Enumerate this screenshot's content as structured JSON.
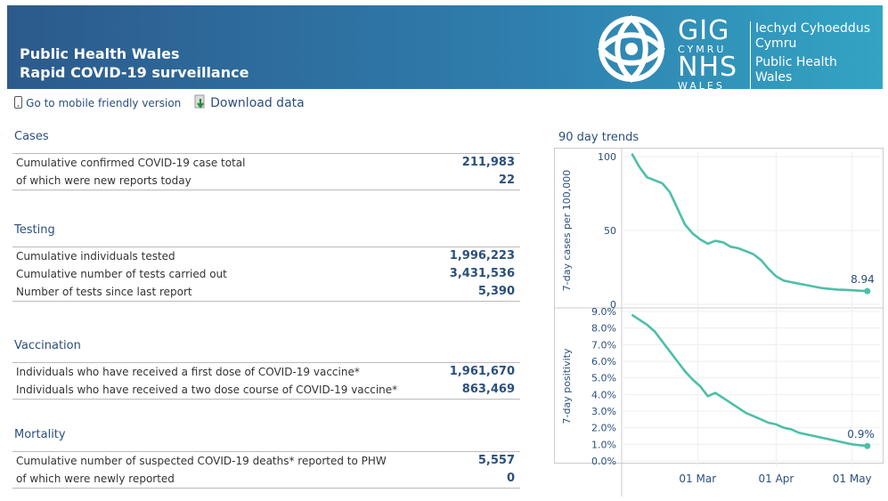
{
  "header": {
    "title_line1": "Public Health Wales",
    "title_line2": "Rapid COVID-19 surveillance",
    "logo_gig": "GIG",
    "logo_cymru": "CYMRU",
    "logo_nhs": "NHS",
    "logo_wales": "WALES",
    "org_welsh_line1": "Iechyd Cyhoeddus",
    "org_welsh_line2": "Cymru",
    "org_english_line1": "Public Health",
    "org_english_line2": "Wales"
  },
  "toolbar": {
    "mobile_label": "Go to mobile friendly version",
    "download_label": "Download data"
  },
  "sections": {
    "cases": {
      "title": "Cases",
      "rows": [
        {
          "label": "Cumulative confirmed COVID-19 case total",
          "value": "211,983"
        },
        {
          "label": "of which were new reports today",
          "value": "22"
        }
      ]
    },
    "testing": {
      "title": "Testing",
      "rows": [
        {
          "label": "Cumulative individuals tested",
          "value": "1,996,223"
        },
        {
          "label": "Cumulative number of tests carried out",
          "value": "3,431,536"
        },
        {
          "label": "Number of tests since last report",
          "value": "5,390"
        }
      ]
    },
    "vaccination": {
      "title": "Vaccination",
      "rows": [
        {
          "label": "Individuals who have received a first dose of COVID-19 vaccine*",
          "value": "1,961,670"
        },
        {
          "label": "Individuals who have received a two dose course of COVID-19 vaccine*",
          "value": "863,469"
        }
      ]
    },
    "mortality": {
      "title": "Mortality",
      "rows": [
        {
          "label": "Cumulative number of suspected COVID-19 deaths* reported to PHW",
          "value": "5,557"
        },
        {
          "label": "of which were newly reported",
          "value": "0"
        }
      ]
    }
  },
  "trends": {
    "title": "90 day trends",
    "line_color": "#4dbfa8"
  },
  "chart_data": [
    {
      "type": "line",
      "title": "",
      "ylabel": "7-day cases per 100,000",
      "ylim": [
        0,
        100
      ],
      "yticks": [
        "0",
        "50",
        "100"
      ],
      "xticks": [
        "01 Mar",
        "01 Apr",
        "01 May"
      ],
      "end_label": "8.94",
      "series": [
        {
          "x": [
            "2021-02-03",
            "2021-02-06",
            "2021-02-09",
            "2021-02-12",
            "2021-02-15",
            "2021-02-18",
            "2021-02-21",
            "2021-02-24",
            "2021-02-27",
            "2021-03-02",
            "2021-03-05",
            "2021-03-08",
            "2021-03-11",
            "2021-03-14",
            "2021-03-17",
            "2021-03-20",
            "2021-03-23",
            "2021-03-26",
            "2021-03-29",
            "2021-04-01",
            "2021-04-04",
            "2021-04-07",
            "2021-04-10",
            "2021-04-13",
            "2021-04-16",
            "2021-04-19",
            "2021-04-22",
            "2021-04-25",
            "2021-04-28",
            "2021-05-01",
            "2021-05-04",
            "2021-05-07"
          ],
          "values": [
            102,
            93,
            86,
            84,
            82,
            76,
            65,
            54,
            48,
            44,
            41,
            43,
            42,
            39,
            38,
            36,
            34,
            30,
            24,
            19,
            16,
            15,
            14,
            13,
            12,
            11,
            10.5,
            10,
            9.8,
            9.5,
            9.2,
            8.94
          ]
        }
      ]
    },
    {
      "type": "line",
      "title": "",
      "ylabel": "7-day positivity",
      "ylim": [
        0,
        9
      ],
      "yticks": [
        "0.0%",
        "1.0%",
        "2.0%",
        "3.0%",
        "4.0%",
        "5.0%",
        "6.0%",
        "7.0%",
        "8.0%",
        "9.0%"
      ],
      "xticks": [
        "01 Mar",
        "01 Apr",
        "01 May"
      ],
      "end_label": "0.9%",
      "series": [
        {
          "x": [
            "2021-02-03",
            "2021-02-06",
            "2021-02-09",
            "2021-02-12",
            "2021-02-15",
            "2021-02-18",
            "2021-02-21",
            "2021-02-24",
            "2021-02-27",
            "2021-03-02",
            "2021-03-05",
            "2021-03-08",
            "2021-03-11",
            "2021-03-14",
            "2021-03-17",
            "2021-03-20",
            "2021-03-23",
            "2021-03-26",
            "2021-03-29",
            "2021-04-01",
            "2021-04-04",
            "2021-04-07",
            "2021-04-10",
            "2021-04-13",
            "2021-04-16",
            "2021-04-19",
            "2021-04-22",
            "2021-04-25",
            "2021-04-28",
            "2021-05-01",
            "2021-05-04",
            "2021-05-07"
          ],
          "values": [
            8.8,
            8.5,
            8.2,
            7.8,
            7.2,
            6.6,
            6.0,
            5.4,
            4.9,
            4.5,
            3.9,
            4.1,
            3.8,
            3.5,
            3.2,
            2.9,
            2.7,
            2.5,
            2.3,
            2.2,
            2.0,
            1.9,
            1.7,
            1.6,
            1.5,
            1.4,
            1.3,
            1.2,
            1.1,
            1.0,
            0.95,
            0.9
          ]
        }
      ]
    }
  ]
}
